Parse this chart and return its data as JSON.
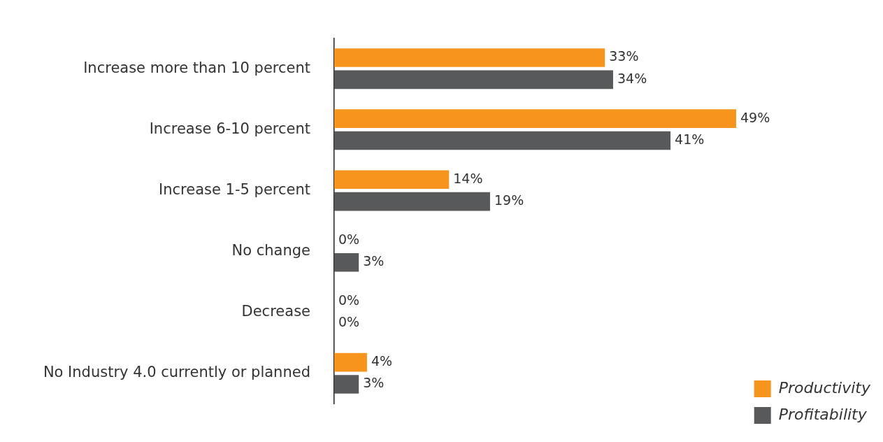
{
  "chart_data": {
    "type": "bar",
    "orientation": "horizontal",
    "categories": [
      "Increase more than 10 percent",
      "Increase 6-10 percent",
      "Increase 1-5 percent",
      "No change",
      "Decrease",
      "No Industry 4.0 currently or planned"
    ],
    "series": [
      {
        "name": "Productivity",
        "color": "#f7941d",
        "values": [
          33,
          49,
          14,
          0,
          0,
          4
        ],
        "value_labels": [
          "33%",
          "49%",
          "14%",
          "0%",
          "0%",
          "4%"
        ]
      },
      {
        "name": "Profitability",
        "color": "#58595b",
        "values": [
          34,
          41,
          19,
          3,
          0,
          3
        ],
        "value_labels": [
          "34%",
          "41%",
          "19%",
          "3%",
          "0%",
          "3%"
        ]
      }
    ],
    "legend": "bottom right",
    "grid": false
  }
}
